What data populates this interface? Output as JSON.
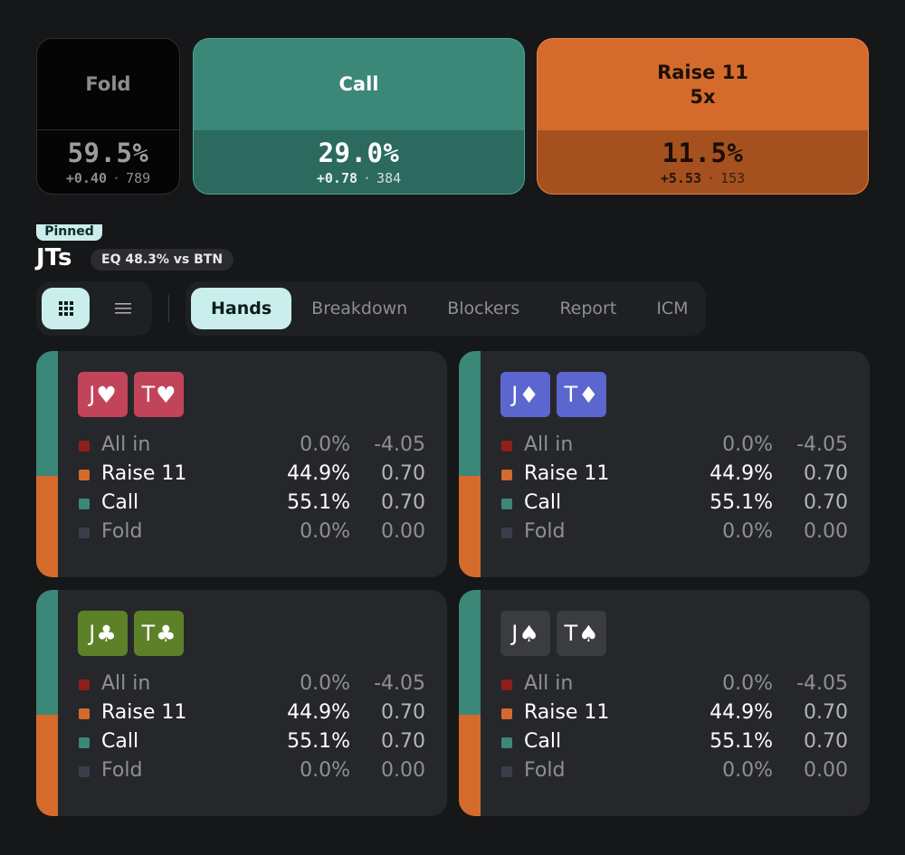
{
  "actions": [
    {
      "key": "fold",
      "name_line1": "Fold",
      "name_line2": "",
      "pct": "59.5%",
      "ev": "+0.40",
      "count": "789"
    },
    {
      "key": "call",
      "name_line1": "Call",
      "name_line2": "",
      "pct": "29.0%",
      "ev": "+0.78",
      "count": "384"
    },
    {
      "key": "raise",
      "name_line1": "Raise 11",
      "name_line2": "5x",
      "pct": "11.5%",
      "ev": "+5.53",
      "count": "153"
    }
  ],
  "header": {
    "pinned_label": "Pinned",
    "hand": "JTs",
    "equity_badge": "EQ 48.3% vs BTN"
  },
  "view_toggle": {
    "options": [
      {
        "icon": "grid-icon",
        "active": true
      },
      {
        "icon": "list-icon",
        "active": false
      }
    ]
  },
  "tabs": [
    {
      "label": "Hands",
      "active": true
    },
    {
      "label": "Breakdown",
      "active": false
    },
    {
      "label": "Blockers",
      "active": false
    },
    {
      "label": "Report",
      "active": false
    },
    {
      "label": "ICM",
      "active": false
    }
  ],
  "colors": {
    "allin": "#8f1f1a",
    "raise": "#d46b2c",
    "call": "#3b8778",
    "fold": "#3a3f4a"
  },
  "combos": [
    {
      "suit": "hearts",
      "suit_symbol": "♥",
      "cards": [
        {
          "rank": "J",
          "suit": "♥"
        },
        {
          "rank": "T",
          "suit": "♥"
        }
      ],
      "strip": {
        "call": 0.55,
        "raise": 0.45
      },
      "rows": [
        {
          "label": "All in",
          "pct": "0.0%",
          "ev": "-4.05",
          "color": "allin",
          "bright": false
        },
        {
          "label": "Raise 11",
          "pct": "44.9%",
          "ev": "0.70",
          "color": "raise",
          "bright": true
        },
        {
          "label": "Call",
          "pct": "55.1%",
          "ev": "0.70",
          "color": "call",
          "bright": true
        },
        {
          "label": "Fold",
          "pct": "0.0%",
          "ev": "0.00",
          "color": "fold",
          "bright": false
        }
      ]
    },
    {
      "suit": "diamonds",
      "suit_symbol": "♦",
      "cards": [
        {
          "rank": "J",
          "suit": "♦"
        },
        {
          "rank": "T",
          "suit": "♦"
        }
      ],
      "strip": {
        "call": 0.55,
        "raise": 0.45
      },
      "rows": [
        {
          "label": "All in",
          "pct": "0.0%",
          "ev": "-4.05",
          "color": "allin",
          "bright": false
        },
        {
          "label": "Raise 11",
          "pct": "44.9%",
          "ev": "0.70",
          "color": "raise",
          "bright": true
        },
        {
          "label": "Call",
          "pct": "55.1%",
          "ev": "0.70",
          "color": "call",
          "bright": true
        },
        {
          "label": "Fold",
          "pct": "0.0%",
          "ev": "0.00",
          "color": "fold",
          "bright": false
        }
      ]
    },
    {
      "suit": "clubs",
      "suit_symbol": "♣",
      "cards": [
        {
          "rank": "J",
          "suit": "♣"
        },
        {
          "rank": "T",
          "suit": "♣"
        }
      ],
      "strip": {
        "call": 0.55,
        "raise": 0.45
      },
      "rows": [
        {
          "label": "All in",
          "pct": "0.0%",
          "ev": "-4.05",
          "color": "allin",
          "bright": false
        },
        {
          "label": "Raise 11",
          "pct": "44.9%",
          "ev": "0.70",
          "color": "raise",
          "bright": true
        },
        {
          "label": "Call",
          "pct": "55.1%",
          "ev": "0.70",
          "color": "call",
          "bright": true
        },
        {
          "label": "Fold",
          "pct": "0.0%",
          "ev": "0.00",
          "color": "fold",
          "bright": false
        }
      ]
    },
    {
      "suit": "spades",
      "suit_symbol": "♠",
      "cards": [
        {
          "rank": "J",
          "suit": "♠"
        },
        {
          "rank": "T",
          "suit": "♠"
        }
      ],
      "strip": {
        "call": 0.55,
        "raise": 0.45
      },
      "rows": [
        {
          "label": "All in",
          "pct": "0.0%",
          "ev": "-4.05",
          "color": "allin",
          "bright": false
        },
        {
          "label": "Raise 11",
          "pct": "44.9%",
          "ev": "0.70",
          "color": "raise",
          "bright": true
        },
        {
          "label": "Call",
          "pct": "55.1%",
          "ev": "0.70",
          "color": "call",
          "bright": true
        },
        {
          "label": "Fold",
          "pct": "0.0%",
          "ev": "0.00",
          "color": "fold",
          "bright": false
        }
      ]
    }
  ]
}
